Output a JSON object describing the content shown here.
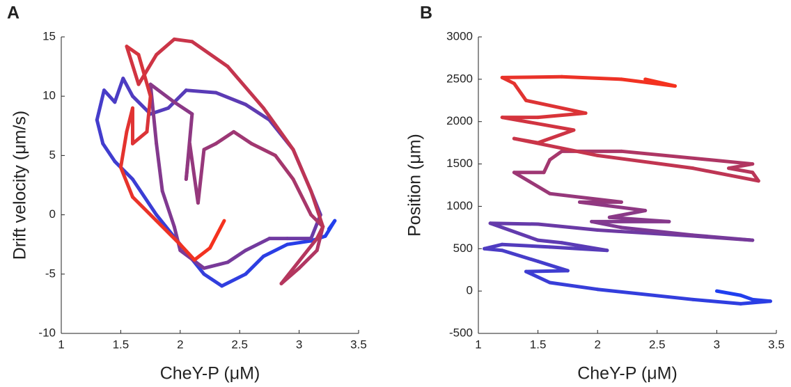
{
  "chart_data": [
    {
      "type": "line",
      "title": "A",
      "x_label": "CheY-P (μM)",
      "y_label": "Drift velocity (μm/s)",
      "xlim": [
        1,
        3.5
      ],
      "xticks": [
        1,
        1.5,
        2,
        2.5,
        3,
        3.5
      ],
      "ylim": [
        -10,
        15
      ],
      "yticks": [
        -10,
        -5,
        0,
        5,
        10,
        15
      ],
      "color_start": "#1f3ff0",
      "color_end": "#f5321e",
      "x": [
        3.25,
        3.3,
        3.22,
        3.1,
        2.9,
        2.7,
        2.55,
        2.35,
        2.2,
        2.0,
        1.8,
        1.6,
        1.45,
        1.35,
        1.3,
        1.36,
        1.45,
        1.52,
        1.6,
        1.75,
        1.9,
        2.05,
        2.3,
        2.55,
        2.75,
        2.95,
        3.1,
        3.18,
        3.1,
        2.9,
        2.75,
        2.55,
        2.4,
        2.2,
        2.0,
        1.95,
        1.85,
        1.8,
        1.75,
        1.95,
        2.1,
        2.05,
        2.08,
        2.15,
        2.2,
        2.3,
        2.45,
        2.6,
        2.8,
        2.95,
        3.1,
        3.2,
        3.15,
        3.0,
        2.85,
        3.15,
        3.2,
        3.1,
        2.95,
        2.7,
        2.4,
        2.1,
        1.95,
        1.8,
        1.65,
        1.55,
        1.65,
        1.75,
        1.72,
        1.6,
        1.6,
        1.55,
        1.5,
        1.6,
        1.8,
        2.0,
        2.12,
        2.25,
        2.37
      ],
      "values": [
        -1.2,
        -0.5,
        -1.8,
        -2.2,
        -2.5,
        -3.5,
        -5,
        -6,
        -5,
        -2.5,
        0,
        3,
        4.5,
        6,
        8,
        10.5,
        9.5,
        11.5,
        10,
        8.5,
        9,
        10.5,
        10.3,
        9.3,
        8,
        5.5,
        2,
        0,
        -2,
        -2,
        -2,
        -3,
        -4,
        -4.5,
        -3,
        -1,
        2,
        6,
        11,
        9.5,
        8.5,
        3,
        6,
        1,
        5.5,
        6,
        7,
        6,
        5,
        3,
        0,
        -1,
        -3,
        -4.5,
        -5.8,
        -2,
        -1,
        2,
        5.5,
        9,
        12.5,
        14.6,
        14.8,
        13.5,
        11,
        14.2,
        13.5,
        10,
        7,
        6,
        9,
        7,
        4,
        1.5,
        -0.5,
        -2.5,
        -3.8,
        -2.8,
        -0.5
      ]
    },
    {
      "type": "line",
      "title": "B",
      "x_label": "CheY-P (μM)",
      "y_label": "Position (μm)",
      "xlim": [
        1,
        3.5
      ],
      "xticks": [
        1,
        1.5,
        2,
        2.5,
        3,
        3.5
      ],
      "ylim": [
        -500,
        3000
      ],
      "yticks": [
        -500,
        0,
        500,
        1000,
        1500,
        2000,
        2500,
        3000
      ],
      "color_start": "#1f3ff0",
      "color_end": "#f5321e",
      "x": [
        3.0,
        3.2,
        3.3,
        3.45,
        3.2,
        2.8,
        2.0,
        1.6,
        1.4,
        1.75,
        1.5,
        1.2,
        1.05,
        1.2,
        1.6,
        2.08,
        1.7,
        1.5,
        1.1,
        1.5,
        2.0,
        2.8,
        3.3,
        2.8,
        2.2,
        1.95,
        2.6,
        2.1,
        2.4,
        1.85,
        2.2,
        1.6,
        1.3,
        1.55,
        1.6,
        1.7,
        2.2,
        3.3,
        3.1,
        3.3,
        3.35,
        2.8,
        2.0,
        1.3,
        1.5,
        1.8,
        1.2,
        1.5,
        1.9,
        1.4,
        1.3,
        1.2,
        1.7,
        2.2,
        2.65,
        2.4
      ],
      "values": [
        0,
        -50,
        -100,
        -120,
        -150,
        -100,
        20,
        100,
        230,
        240,
        350,
        480,
        500,
        550,
        520,
        480,
        570,
        600,
        800,
        790,
        720,
        650,
        600,
        660,
        750,
        820,
        820,
        870,
        950,
        1050,
        1050,
        1150,
        1400,
        1400,
        1550,
        1650,
        1650,
        1500,
        1450,
        1400,
        1300,
        1450,
        1600,
        1800,
        1750,
        1900,
        2050,
        2050,
        2100,
        2250,
        2450,
        2520,
        2530,
        2500,
        2420,
        2500
      ]
    }
  ]
}
